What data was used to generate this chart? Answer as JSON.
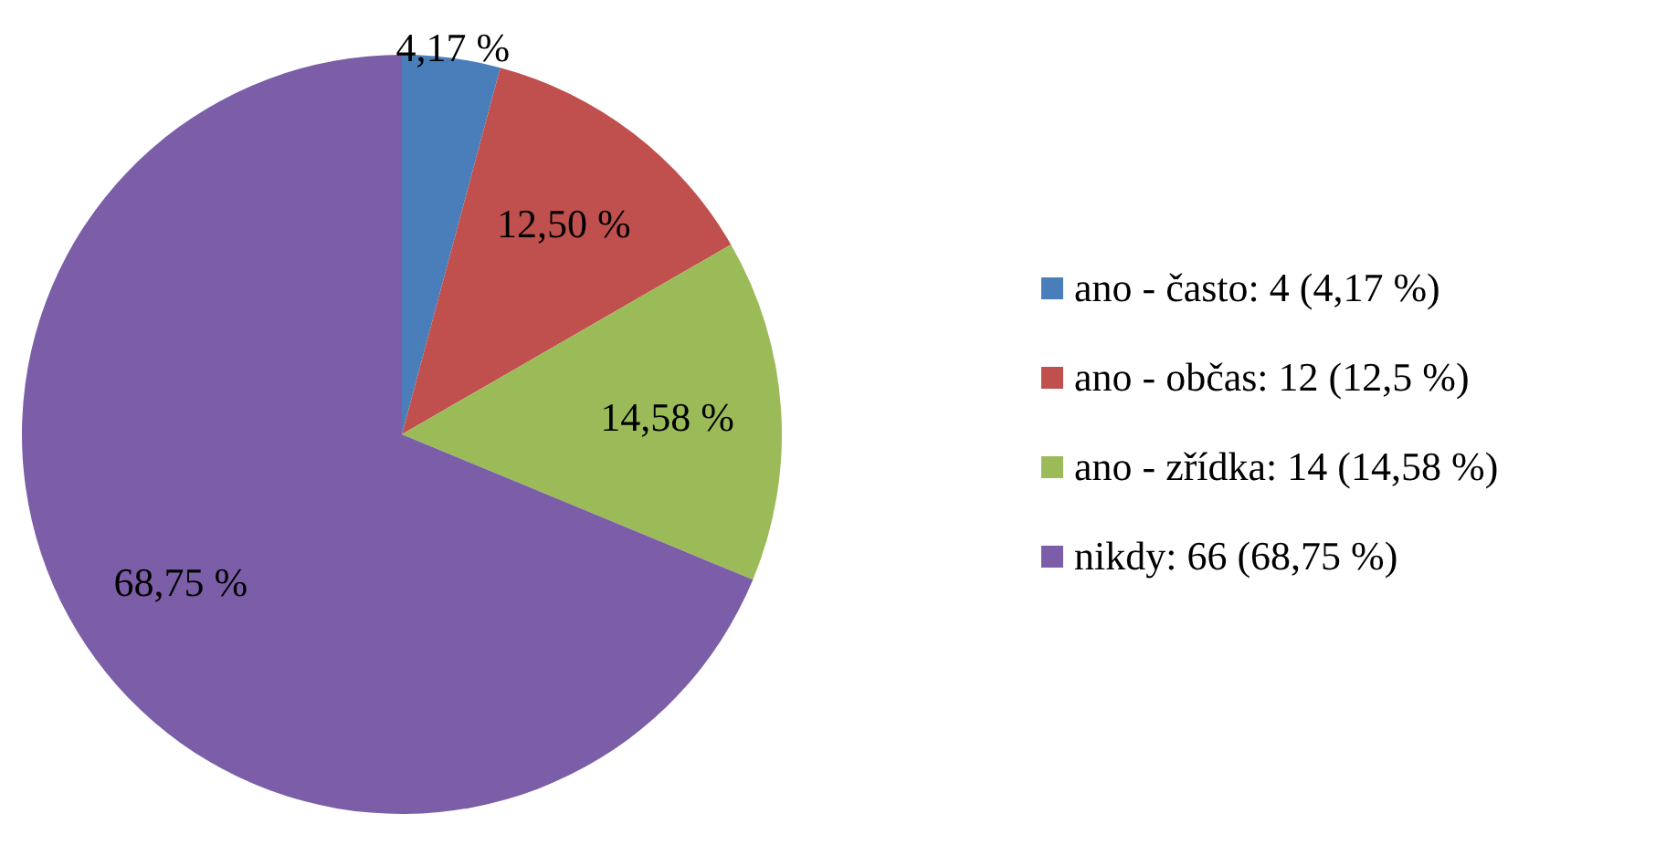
{
  "chart_data": {
    "type": "pie",
    "categories": [
      "ano - často: 4 (4,17 %)",
      "ano - občas: 12 (12,5 %)",
      "ano - zřídka: 14 (14,58 %)",
      "nikdy: 66 (68,75 %)"
    ],
    "values": [
      4.17,
      12.5,
      14.58,
      68.75
    ],
    "value_labels": [
      "4,17 %",
      "12,50 %",
      "14,58 %",
      "68,75 %"
    ],
    "colors": [
      "#4a7ebb",
      "#c0504d",
      "#9bbb59",
      "#7b5ea7"
    ],
    "legend": "right"
  }
}
